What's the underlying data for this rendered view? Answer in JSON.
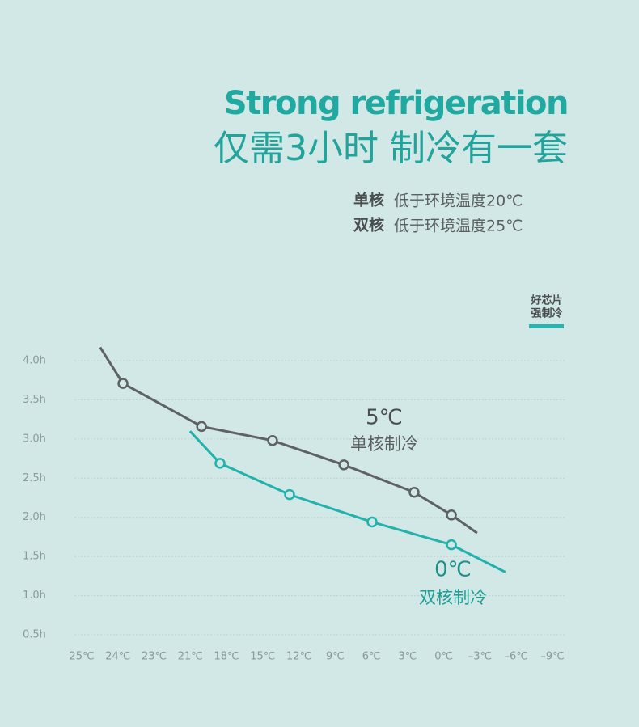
{
  "chart_data": {
    "type": "line",
    "title": "Strong refrigeration",
    "subtitle": "仅需3小时 制冷有一套",
    "notes": [
      {
        "label": "单核",
        "text": "低于环境温度20℃"
      },
      {
        "label": "双核",
        "text": "低于环境温度25℃"
      }
    ],
    "legend": {
      "text": [
        "好芯片",
        "强制冷"
      ],
      "color": "#2ab3b0"
    },
    "xlim": [
      0,
      13
    ],
    "xticks": [
      {
        "value": 0,
        "label": "25℃"
      },
      {
        "value": 1,
        "label": "24℃"
      },
      {
        "value": 2,
        "label": "23℃"
      },
      {
        "value": 3,
        "label": "21℃"
      },
      {
        "value": 4,
        "label": "18℃"
      },
      {
        "value": 5,
        "label": "15℃"
      },
      {
        "value": 6,
        "label": "12℃"
      },
      {
        "value": 7,
        "label": "9℃"
      },
      {
        "value": 8,
        "label": "6℃"
      },
      {
        "value": 9,
        "label": "3℃"
      },
      {
        "value": 10,
        "label": "0℃"
      },
      {
        "value": 11,
        "label": "–3℃"
      },
      {
        "value": 12,
        "label": "–6℃"
      },
      {
        "value": 13,
        "label": "–9℃"
      }
    ],
    "ylim": [
      0.5,
      4.0
    ],
    "yticks": [
      {
        "value": 4,
        "label": "4.0h"
      },
      {
        "value": 3.5,
        "label": "3.5h"
      },
      {
        "value": 3,
        "label": "3.0h"
      },
      {
        "value": 2.5,
        "label": "2.5h"
      },
      {
        "value": 2,
        "label": "2.0h"
      },
      {
        "value": 1.5,
        "label": "1.5h"
      },
      {
        "value": 1,
        "label": "1.0h"
      },
      {
        "value": 0.5,
        "label": "0.5h"
      }
    ],
    "grid": true,
    "series": [
      {
        "name": "单核制冷",
        "annotation": "5℃",
        "color": "#5e6264",
        "x": [
          0.51,
          1.14,
          3.31,
          5.27,
          7.24,
          9.18,
          10.21,
          10.92
        ],
        "values": [
          4.17,
          3.71,
          3.16,
          2.98,
          2.67,
          2.32,
          2.03,
          1.8
        ]
      },
      {
        "name": "双核制冷",
        "annotation": "0℃",
        "color": "#22b2ac",
        "x": [
          2.99,
          3.82,
          5.74,
          8.02,
          10.21,
          11.7
        ],
        "values": [
          3.1,
          2.69,
          2.29,
          1.94,
          1.65,
          1.3
        ]
      }
    ]
  }
}
